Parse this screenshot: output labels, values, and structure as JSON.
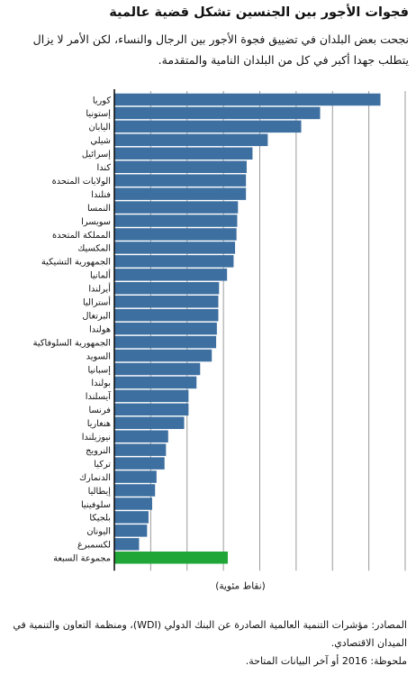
{
  "header": {
    "title": "فجوات الأجور بين الجنسين تشكل قضية عالمية",
    "subtitle": "نجحت بعض البلدان في تضييق فجوة الأجور بين الرجال والنساء، لكن الأمر لا يزال يتطلب جهدا أكبر في كل من البلدان النامية والمتقدمة."
  },
  "chart_data": {
    "type": "bar",
    "orientation": "horizontal",
    "xlabel": "(نقاط مئوية)",
    "xlim": [
      0,
      40
    ],
    "grid": true,
    "categories": [
      "كوريا",
      "إستونيا",
      "اليابان",
      "شيلي",
      "إسرائيل",
      "كندا",
      "الولايات المتحدة",
      "فنلندا",
      "النمسا",
      "سويسرا",
      "المملكة المتحدة",
      "المكسيك",
      "الجمهورية التشيكية",
      "ألمانيا",
      "أيرلندا",
      "أستراليا",
      "البرتغال",
      "هولندا",
      "الجمهورية السلوفاكية",
      "السويد",
      "إسبانيا",
      "بولندا",
      "آيسلندا",
      "فرنسا",
      "هنغاريا",
      "نيوزيلندا",
      "النرويج",
      "تركيا",
      "الدنمارك",
      "إيطاليا",
      "سلوفينيا",
      "بلجيكا",
      "اليونان",
      "لكسمبرغ",
      "مجموعة السبعة"
    ],
    "values": [
      36.6,
      28.3,
      25.7,
      21.1,
      19.0,
      18.2,
      18.1,
      18.1,
      17.0,
      16.9,
      16.8,
      16.6,
      16.4,
      15.5,
      14.4,
      14.3,
      14.3,
      14.1,
      14.0,
      13.4,
      11.8,
      11.3,
      10.2,
      10.2,
      9.6,
      7.4,
      7.1,
      6.9,
      5.8,
      5.6,
      5.2,
      4.7,
      4.5,
      3.4,
      15.6
    ],
    "highlight_index": 34,
    "colors": {
      "bar": "#3d6fa0",
      "highlight": "#1fa637",
      "grid": "#9a9a9a",
      "axis": "#111111"
    }
  },
  "footer": {
    "sources": "المصادر: مؤشرات التنمية العالمية الصادرة عن البنك الدولي (WDI)، ومنظمة التعاون والتنمية في الميدان الاقتصادي.",
    "note": "ملحوظة: 2016 أو آخر البيانات المتاحة."
  }
}
